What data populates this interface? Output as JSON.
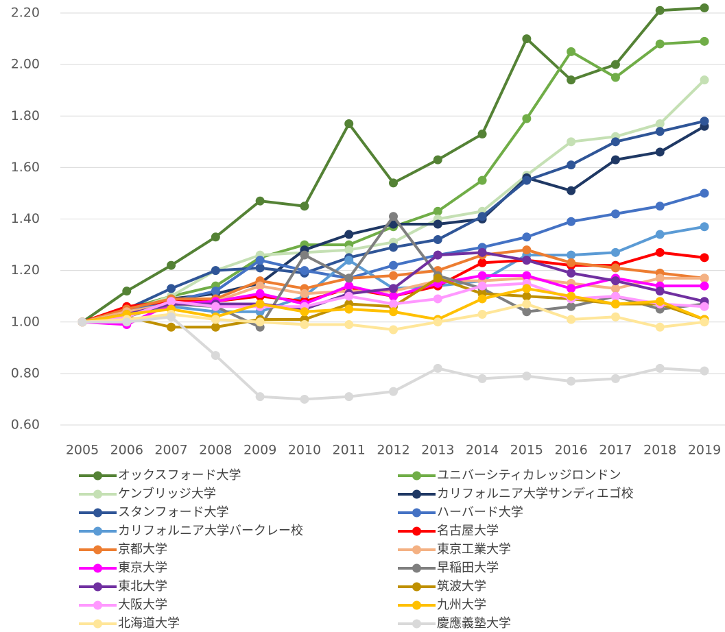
{
  "chart_data": {
    "type": "line",
    "categories": [
      "2005",
      "2006",
      "2007",
      "2008",
      "2009",
      "2010",
      "2011",
      "2012",
      "2013",
      "2014",
      "2015",
      "2016",
      "2017",
      "2018",
      "2019"
    ],
    "ylim": [
      0.6,
      2.2
    ],
    "yticks": [
      {
        "value": 0.6,
        "label": "0.60"
      },
      {
        "value": 0.8,
        "label": "0.80"
      },
      {
        "value": 1.0,
        "label": "1.00"
      },
      {
        "value": 1.2,
        "label": "1.20"
      },
      {
        "value": 1.4,
        "label": "1.40"
      },
      {
        "value": 1.6,
        "label": "1.60"
      },
      {
        "value": 1.8,
        "label": "1.80"
      },
      {
        "value": 2.0,
        "label": "2.00"
      },
      {
        "value": 2.2,
        "label": "2.20"
      }
    ],
    "grid": true,
    "series": [
      {
        "name": "オックスフォード大学",
        "color": "#548235",
        "values": [
          1.0,
          1.12,
          1.22,
          1.33,
          1.47,
          1.45,
          1.77,
          1.54,
          1.63,
          1.73,
          2.1,
          1.94,
          2.0,
          2.21,
          2.22
        ]
      },
      {
        "name": "ユニバーシティカレッジロンドン",
        "color": "#70ad47",
        "values": [
          1.0,
          1.05,
          1.1,
          1.14,
          1.25,
          1.3,
          1.3,
          1.37,
          1.43,
          1.55,
          1.79,
          2.05,
          1.95,
          2.08,
          2.09
        ]
      },
      {
        "name": "ケンブリッジ大学",
        "color": "#c5e0b4",
        "values": [
          1.0,
          1.04,
          1.1,
          1.2,
          1.26,
          1.27,
          1.28,
          1.31,
          1.4,
          1.43,
          1.57,
          1.7,
          1.72,
          1.77,
          1.94
        ]
      },
      {
        "name": "カリフォルニア大学サンディエゴ校",
        "color": "#1f3864",
        "values": [
          1.0,
          1.04,
          1.09,
          1.11,
          1.15,
          1.28,
          1.34,
          1.38,
          1.38,
          1.4,
          1.56,
          1.51,
          1.63,
          1.66,
          1.76
        ]
      },
      {
        "name": "スタンフォード大学",
        "color": "#2f5597",
        "values": [
          1.0,
          1.05,
          1.13,
          1.2,
          1.21,
          1.19,
          1.25,
          1.29,
          1.32,
          1.41,
          1.55,
          1.61,
          1.7,
          1.74,
          1.78
        ]
      },
      {
        "name": "ハーバード大学",
        "color": "#4472c4",
        "values": [
          1.0,
          1.04,
          1.08,
          1.12,
          1.24,
          1.2,
          1.17,
          1.22,
          1.26,
          1.29,
          1.33,
          1.39,
          1.42,
          1.45,
          1.5
        ]
      },
      {
        "name": "カリフォルニア大学バークレー校",
        "color": "#5b9bd5",
        "values": [
          1.0,
          1.03,
          1.06,
          1.04,
          1.04,
          1.1,
          1.24,
          1.13,
          1.14,
          1.16,
          1.26,
          1.26,
          1.27,
          1.34,
          1.37
        ]
      },
      {
        "name": "名古屋大学",
        "color": "#ff0000",
        "values": [
          1.0,
          1.06,
          1.08,
          1.08,
          1.1,
          1.08,
          1.13,
          1.1,
          1.14,
          1.23,
          1.24,
          1.22,
          1.22,
          1.27,
          1.25
        ]
      },
      {
        "name": "京都大学",
        "color": "#ed7d31",
        "values": [
          1.0,
          1.05,
          1.09,
          1.09,
          1.16,
          1.13,
          1.17,
          1.18,
          1.2,
          1.26,
          1.28,
          1.23,
          1.21,
          1.19,
          1.17
        ]
      },
      {
        "name": "東京工業大学",
        "color": "#f4b183",
        "values": [
          1.0,
          1.04,
          1.07,
          1.08,
          1.14,
          1.11,
          1.12,
          1.12,
          1.16,
          1.16,
          1.17,
          1.15,
          1.13,
          1.17,
          1.17
        ]
      },
      {
        "name": "東京大学",
        "color": "#ff00ff",
        "values": [
          1.0,
          0.99,
          1.07,
          1.08,
          1.11,
          1.07,
          1.14,
          1.1,
          1.15,
          1.18,
          1.18,
          1.13,
          1.17,
          1.14,
          1.14
        ]
      },
      {
        "name": "早稲田大学",
        "color": "#7f7f7f",
        "values": [
          1.0,
          1.02,
          1.07,
          1.06,
          0.98,
          1.26,
          1.17,
          1.41,
          1.18,
          1.13,
          1.04,
          1.06,
          1.1,
          1.05,
          1.07
        ]
      },
      {
        "name": "東北大学",
        "color": "#7030a0",
        "values": [
          1.0,
          1.03,
          1.07,
          1.07,
          1.07,
          1.05,
          1.11,
          1.13,
          1.26,
          1.27,
          1.24,
          1.19,
          1.16,
          1.12,
          1.08
        ]
      },
      {
        "name": "筑波大学",
        "color": "#bf9000",
        "values": [
          1.0,
          1.02,
          0.98,
          0.98,
          1.01,
          1.01,
          1.07,
          1.06,
          1.17,
          1.11,
          1.1,
          1.09,
          1.07,
          1.07,
          1.01
        ]
      },
      {
        "name": "大阪大学",
        "color": "#ff99ff",
        "values": [
          1.0,
          1.02,
          1.08,
          1.06,
          1.06,
          1.06,
          1.1,
          1.07,
          1.09,
          1.14,
          1.15,
          1.09,
          1.1,
          1.07,
          1.06
        ]
      },
      {
        "name": "九州大学",
        "color": "#ffc000",
        "values": [
          1.0,
          1.03,
          1.05,
          1.02,
          1.07,
          1.04,
          1.05,
          1.04,
          1.01,
          1.09,
          1.13,
          1.1,
          1.07,
          1.08,
          1.01
        ]
      },
      {
        "name": "北海道大学",
        "color": "#ffe699",
        "values": [
          1.0,
          1.01,
          1.03,
          1.01,
          1.0,
          0.99,
          0.99,
          0.97,
          1.0,
          1.03,
          1.07,
          1.01,
          1.02,
          0.98,
          1.0
        ]
      },
      {
        "name": "慶應義塾大学",
        "color": "#d9d9d9",
        "values": [
          1.0,
          1.0,
          1.02,
          0.87,
          0.71,
          0.7,
          0.71,
          0.73,
          0.82,
          0.78,
          0.79,
          0.77,
          0.78,
          0.82,
          0.81
        ]
      }
    ]
  }
}
